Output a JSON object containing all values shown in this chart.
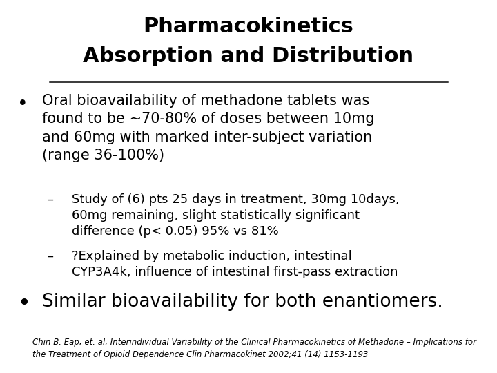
{
  "title_line1": "Pharmacokinetics",
  "title_line2": "Absorption and Distribution",
  "bg_color": "#ffffff",
  "text_color": "#000000",
  "title_fontsize": 22,
  "bullet1_text": "Oral bioavailability of methadone tablets was\nfound to be ~70-80% of doses between 10mg\nand 60mg with marked inter-subject variation\n(range 36-100%)",
  "sub1_text": "Study of (6) pts 25 days in treatment, 30mg 10days,\n60mg remaining, slight statistically significant\ndifference (p< 0.05) 95% vs 81%",
  "sub2_text": "?Explained by metabolic induction, intestinal\nCYP3A4k, influence of intestinal first-pass extraction",
  "bullet2_text": "Similar bioavailability for both enantiomers.",
  "footnote": "Chin B. Eap, et. al, Interindividual Variability of the Clinical Pharmacokinetics of Methadone – Implications for\nthe Treatment of Opioid Dependence Clin Pharmacokinet 2002;41 (14) 1153-1193",
  "bullet1_fontsize": 15,
  "sub_fontsize": 13,
  "bullet2_fontsize": 19,
  "footnote_fontsize": 8.5,
  "font_family": "DejaVu Sans"
}
